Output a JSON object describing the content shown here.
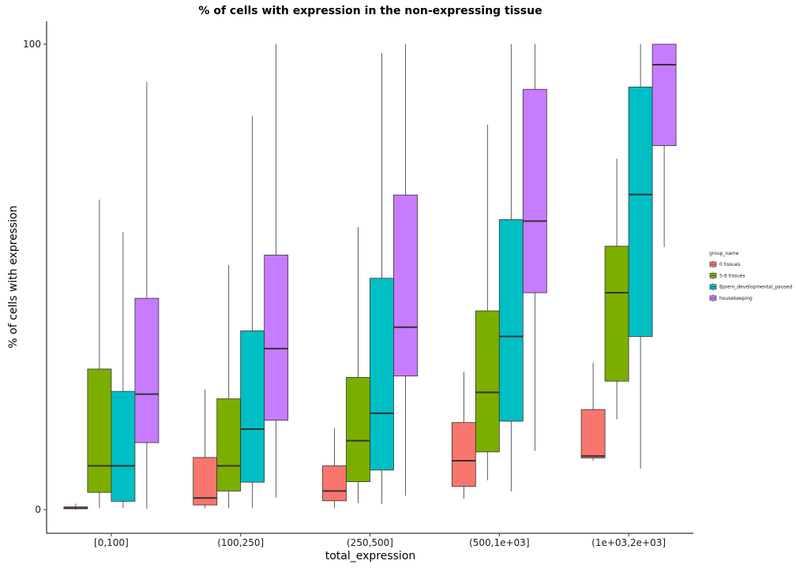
{
  "chart_data": {
    "type": "boxplot",
    "title": "% of cells with expression in the non-expressing tissue",
    "xlabel": "total_expression",
    "ylabel": "% of cells with expression",
    "categories": [
      "[0,100]",
      "(100,250]",
      "(250,500]",
      "(500,1e+03]",
      "(1e+03,2e+03]"
    ],
    "y_ticks": [
      0,
      100
    ],
    "ylim": [
      -5,
      105
    ],
    "grid": false,
    "legend": {
      "title": "group_name",
      "position": "right"
    },
    "series": [
      {
        "name": "0 tissues",
        "color": "#F8766D",
        "boxes": [
          {
            "low": 0.0,
            "q1": 0.2,
            "median": 0.3,
            "q3": 0.6,
            "high": 1.3
          },
          {
            "low": 0.3,
            "q1": 1.0,
            "median": 2.5,
            "q3": 11.2,
            "high": 25.8
          },
          {
            "low": 0.3,
            "q1": 1.9,
            "median": 4.0,
            "q3": 9.4,
            "high": 17.5
          },
          {
            "low": 2.3,
            "q1": 5.0,
            "median": 10.5,
            "q3": 18.7,
            "high": 29.6
          },
          {
            "low": 10.5,
            "q1": 11.1,
            "median": 11.5,
            "q3": 21.5,
            "high": 31.6
          }
        ]
      },
      {
        "name": "5-6 tissues",
        "color": "#7CAE00",
        "boxes": [
          {
            "low": 0.3,
            "q1": 3.7,
            "median": 9.4,
            "q3": 30.2,
            "high": 66.6
          },
          {
            "low": 0.3,
            "q1": 4.0,
            "median": 9.4,
            "q3": 23.8,
            "high": 52.5
          },
          {
            "low": 1.4,
            "q1": 6.0,
            "median": 14.8,
            "q3": 28.4,
            "high": 60.7
          },
          {
            "low": 6.3,
            "q1": 12.4,
            "median": 25.2,
            "q3": 42.7,
            "high": 82.7
          },
          {
            "low": 19.4,
            "q1": 27.6,
            "median": 46.6,
            "q3": 56.6,
            "high": 75.4
          }
        ]
      },
      {
        "name": "Bjoern_developmental_paused",
        "color": "#00BFC4",
        "boxes": [
          {
            "low": 0.3,
            "q1": 1.8,
            "median": 9.4,
            "q3": 25.4,
            "high": 59.6
          },
          {
            "low": 0.3,
            "q1": 5.9,
            "median": 17.3,
            "q3": 38.4,
            "high": 84.6
          },
          {
            "low": 1.2,
            "q1": 8.5,
            "median": 20.7,
            "q3": 49.7,
            "high": 98.1
          },
          {
            "low": 3.9,
            "q1": 19.0,
            "median": 37.2,
            "q3": 62.3,
            "high": 100.0
          },
          {
            "low": 8.8,
            "q1": 37.2,
            "median": 67.7,
            "q3": 90.8,
            "high": 100.0
          }
        ]
      },
      {
        "name": "housekeeping",
        "color": "#C77CFF",
        "boxes": [
          {
            "low": 0.2,
            "q1": 14.4,
            "median": 24.8,
            "q3": 45.4,
            "high": 91.9
          },
          {
            "low": 2.6,
            "q1": 19.2,
            "median": 34.6,
            "q3": 54.7,
            "high": 100.0
          },
          {
            "low": 3.0,
            "q1": 28.7,
            "median": 39.2,
            "q3": 67.6,
            "high": 100.0
          },
          {
            "low": 12.6,
            "q1": 46.6,
            "median": 62.0,
            "q3": 90.3,
            "high": 100.0
          },
          {
            "low": 56.4,
            "q1": 78.2,
            "median": 95.6,
            "q3": 100.0,
            "high": 100.0
          }
        ]
      }
    ]
  }
}
